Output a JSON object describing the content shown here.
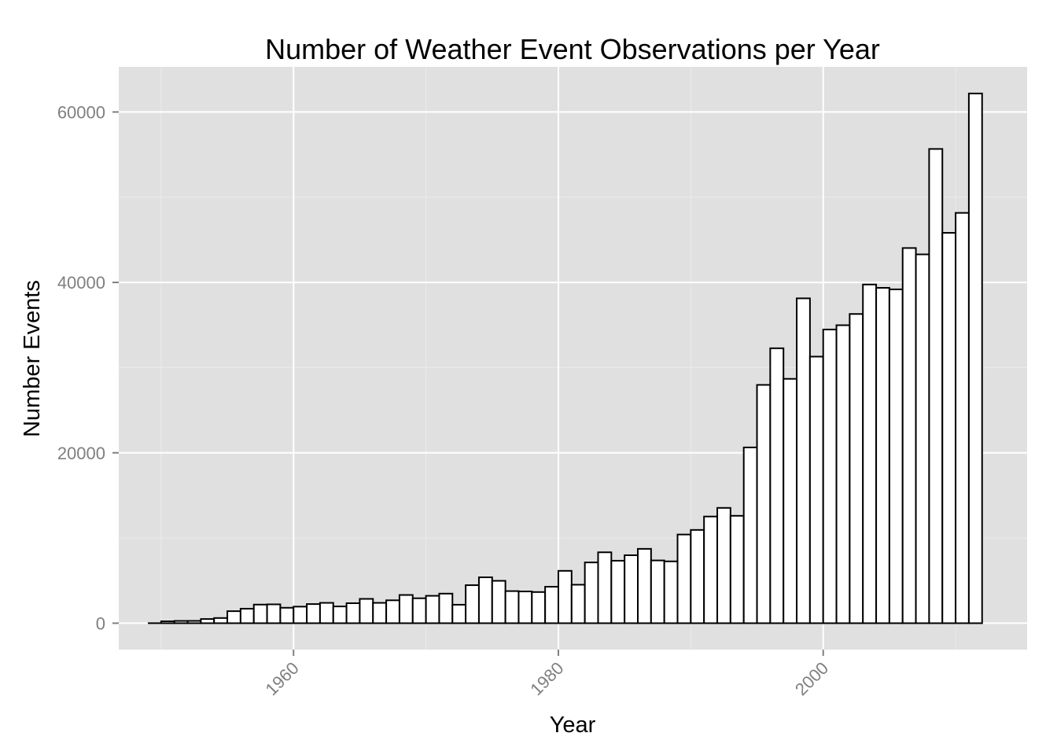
{
  "chart_data": {
    "type": "bar",
    "title": "Number of Weather Event Observations per Year",
    "xlabel": "Year",
    "ylabel": "Number Events",
    "x_ticks": [
      1960,
      1980,
      2000
    ],
    "y_ticks": [
      0,
      20000,
      40000,
      60000
    ],
    "xlim": [
      1946.8,
      2015.4
    ],
    "ylim": [
      -3100,
      65300
    ],
    "grid": true,
    "colors": {
      "panel_background": "#e0e0e0",
      "grid_major": "#ffffff",
      "grid_minor": "#ebebeb",
      "bar_fill": "#ffffff",
      "bar_outline": "#000000",
      "tick_label": "#7f7f7f"
    },
    "categories": [
      1950,
      1951,
      1952,
      1953,
      1954,
      1955,
      1956,
      1957,
      1958,
      1959,
      1960,
      1961,
      1962,
      1963,
      1964,
      1965,
      1966,
      1967,
      1968,
      1969,
      1970,
      1971,
      1972,
      1973,
      1974,
      1975,
      1976,
      1977,
      1978,
      1979,
      1980,
      1981,
      1982,
      1983,
      1984,
      1985,
      1986,
      1987,
      1988,
      1989,
      1990,
      1991,
      1992,
      1993,
      1994,
      1995,
      1996,
      1997,
      1998,
      1999,
      2000,
      2001,
      2002,
      2003,
      2004,
      2005,
      2006,
      2007,
      2008,
      2009,
      2010,
      2011
    ],
    "values": [
      223,
      269,
      272,
      492,
      609,
      1413,
      1703,
      2184,
      2213,
      1813,
      1945,
      2246,
      2389,
      1968,
      2348,
      2855,
      2388,
      2688,
      3312,
      2926,
      3215,
      3471,
      2168,
      4463,
      5386,
      4975,
      3768,
      3728,
      3657,
      4279,
      6146,
      4517,
      7132,
      8322,
      7335,
      7979,
      8726,
      7367,
      7257,
      10410,
      10946,
      12522,
      13534,
      12607,
      20631,
      27970,
      32270,
      28680,
      38128,
      31289,
      34471,
      34975,
      36293,
      39752,
      39363,
      39184,
      44034,
      43289,
      55663,
      45817,
      48161,
      62174
    ]
  }
}
